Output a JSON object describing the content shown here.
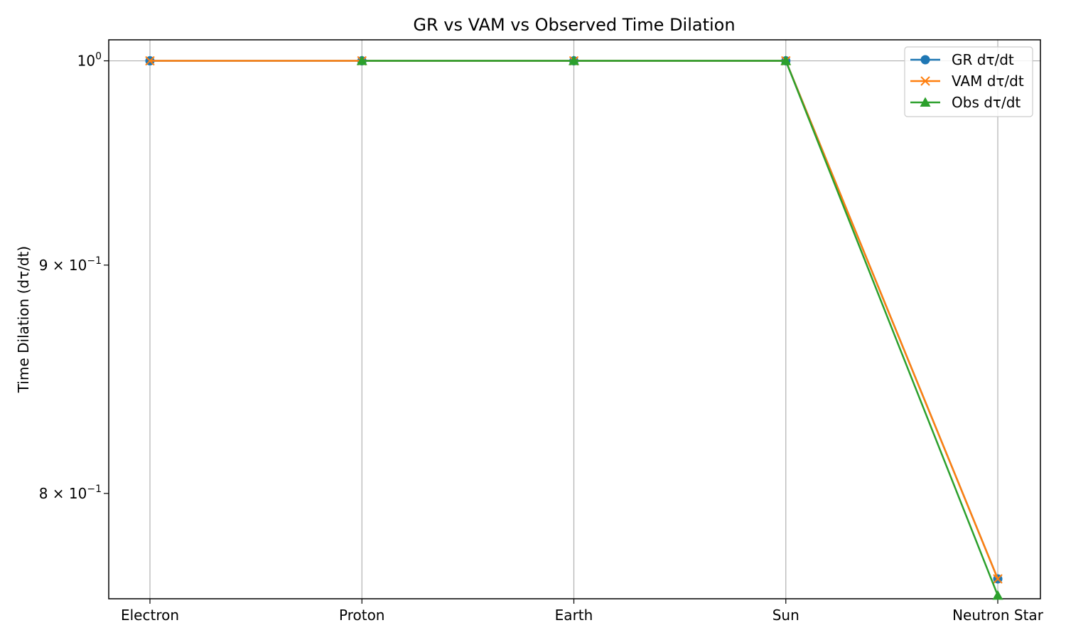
{
  "chart_data": {
    "type": "line",
    "title": "GR vs VAM vs Observed Time Dilation",
    "xlabel": "",
    "ylabel": "Time Dilation (dτ/dt)",
    "yscale": "log",
    "ylim": [
      0.7577,
      1.0109
    ],
    "categories": [
      "Electron",
      "Proton",
      "Earth",
      "Sun",
      "Neutron Star"
    ],
    "y_ticks": [
      {
        "value": 1.0,
        "label": "10",
        "exp": "0"
      },
      {
        "value": 0.9,
        "label": "9 × 10",
        "exp": "−1"
      },
      {
        "value": 0.8,
        "label": "8 × 10",
        "exp": "−1"
      }
    ],
    "grid": true,
    "legend_position": "top-right",
    "series": [
      {
        "name": "GR dτ/dt",
        "color": "#1f77b4",
        "marker": "circle",
        "values": [
          1.0,
          1.0,
          1.0,
          1.0,
          0.7655
        ]
      },
      {
        "name": "VAM dτ/dt",
        "color": "#ff7f0e",
        "marker": "x",
        "values": [
          1.0,
          1.0,
          1.0,
          1.0,
          0.7655
        ]
      },
      {
        "name": "Obs dτ/dt",
        "color": "#2ca02c",
        "marker": "triangle",
        "values": [
          null,
          1.0,
          1.0,
          1.0,
          0.759
        ]
      }
    ]
  }
}
